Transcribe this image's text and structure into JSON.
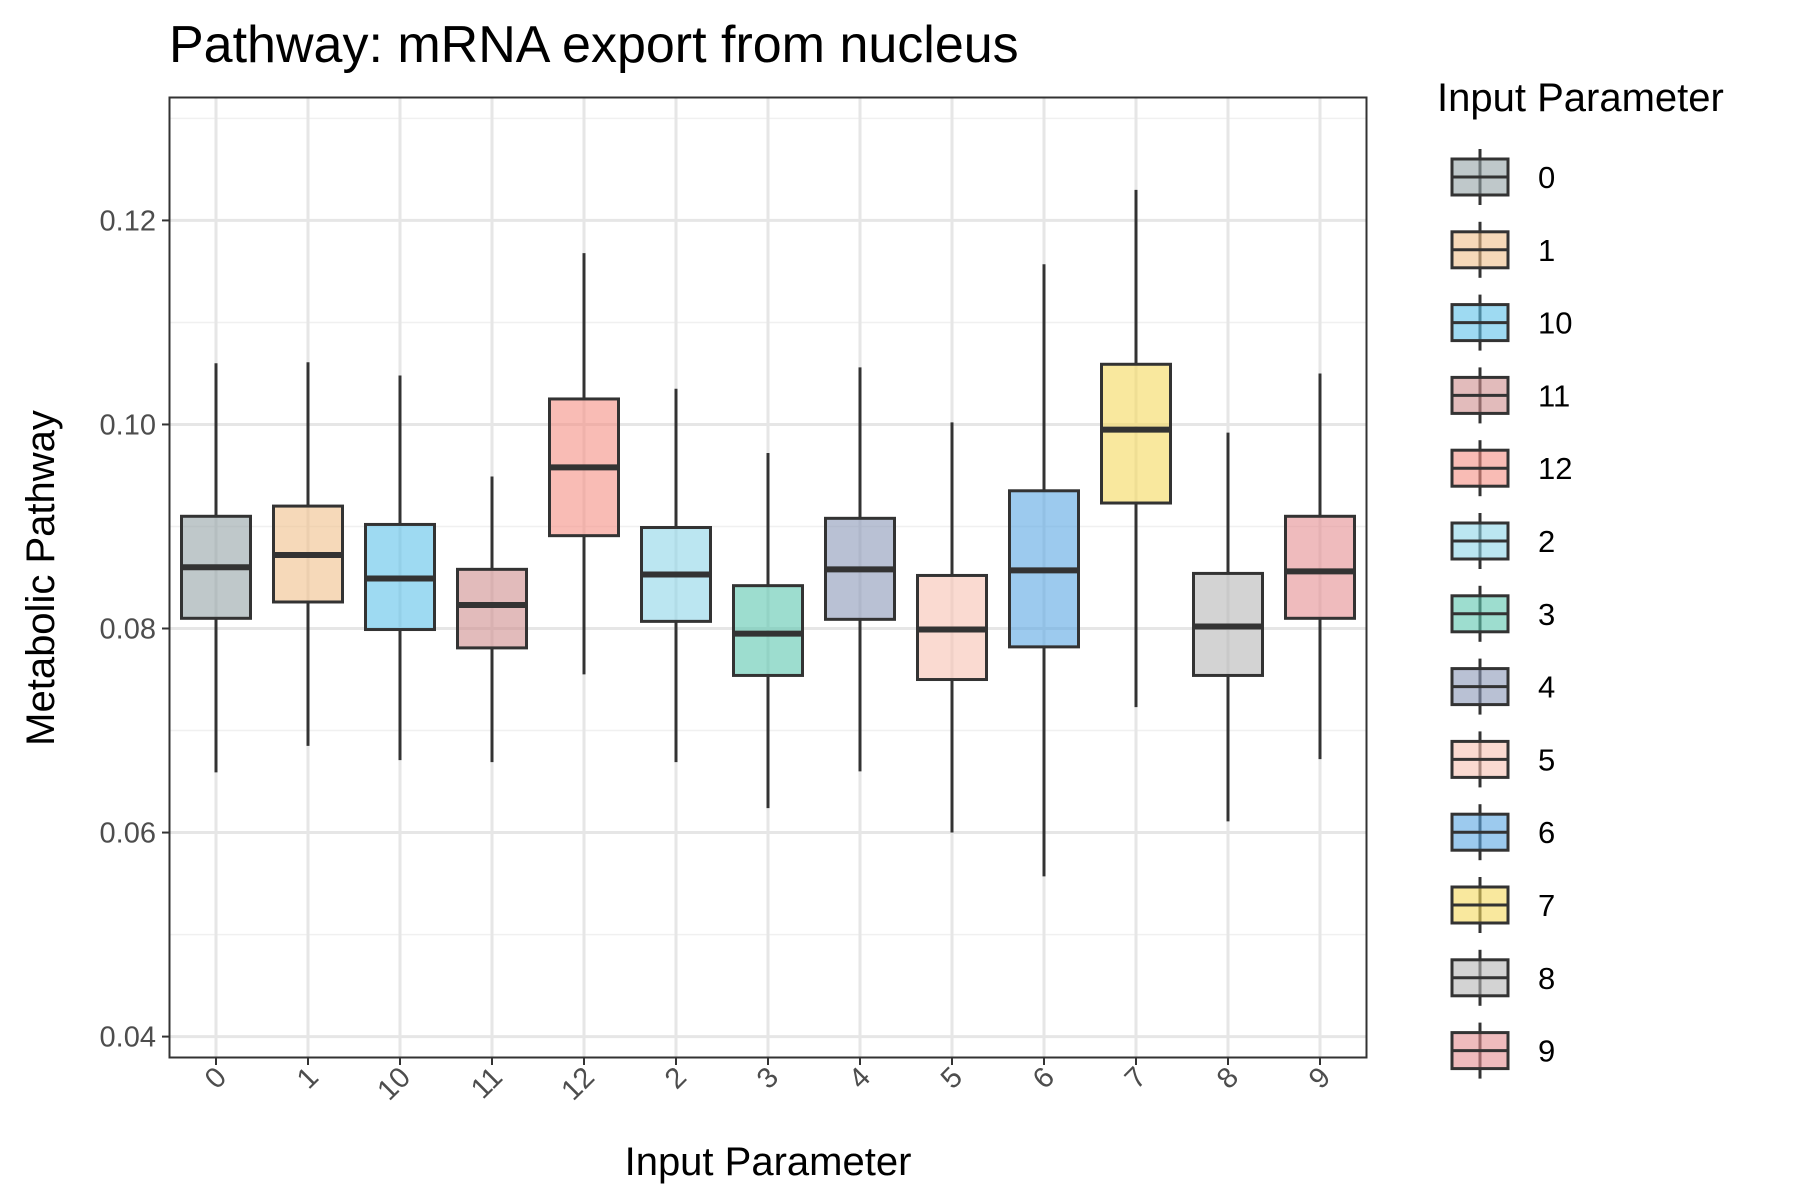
{
  "chart_data": {
    "type": "boxplot",
    "title": "Pathway: mRNA export from nucleus",
    "xlabel": "Input Parameter",
    "ylabel": "Metabolic Pathway",
    "ylim": [
      0.038,
      0.132
    ],
    "yticks": [
      0.04,
      0.06,
      0.08,
      0.1,
      0.12
    ],
    "ytick_labels": [
      "0.04",
      "0.06",
      "0.08",
      "0.10",
      "0.12"
    ],
    "grid": true,
    "legend": {
      "title": "Input Parameter",
      "position": "right"
    },
    "categories": [
      "0",
      "1",
      "10",
      "11",
      "12",
      "2",
      "3",
      "4",
      "5",
      "6",
      "7",
      "8",
      "9"
    ],
    "boxes": [
      {
        "label": "0",
        "min": 0.0659,
        "q1": 0.081,
        "median": 0.086,
        "q3": 0.091,
        "max": 0.106,
        "color": "#95A3A6"
      },
      {
        "label": "1",
        "min": 0.0685,
        "q1": 0.0826,
        "median": 0.0872,
        "q3": 0.092,
        "max": 0.1061,
        "color": "#F0C08A"
      },
      {
        "label": "10",
        "min": 0.0671,
        "q1": 0.0799,
        "median": 0.0849,
        "q3": 0.0902,
        "max": 0.1048,
        "color": "#5DC2EA"
      },
      {
        "label": "11",
        "min": 0.0669,
        "q1": 0.0781,
        "median": 0.0823,
        "q3": 0.0858,
        "max": 0.0949,
        "color": "#CE8E8E"
      },
      {
        "label": "12",
        "min": 0.0755,
        "q1": 0.0891,
        "median": 0.0958,
        "q3": 0.1025,
        "max": 0.1168,
        "color": "#F58F84"
      },
      {
        "label": "2",
        "min": 0.0669,
        "q1": 0.0807,
        "median": 0.0853,
        "q3": 0.0899,
        "max": 0.1035,
        "color": "#8DD5E7"
      },
      {
        "label": "3",
        "min": 0.0624,
        "q1": 0.0754,
        "median": 0.0795,
        "q3": 0.0842,
        "max": 0.0972,
        "color": "#5BC7AF"
      },
      {
        "label": "4",
        "min": 0.066,
        "q1": 0.0809,
        "median": 0.0858,
        "q3": 0.0908,
        "max": 0.1056,
        "color": "#8A97B8"
      },
      {
        "label": "5",
        "min": 0.06,
        "q1": 0.075,
        "median": 0.0799,
        "q3": 0.0852,
        "max": 0.1002,
        "color": "#F6C2B3"
      },
      {
        "label": "6",
        "min": 0.0557,
        "q1": 0.0782,
        "median": 0.0857,
        "q3": 0.0935,
        "max": 0.1157,
        "color": "#5AA6E3"
      },
      {
        "label": "7",
        "min": 0.0723,
        "q1": 0.0923,
        "median": 0.0995,
        "q3": 0.1059,
        "max": 0.123,
        "color": "#F5D85E"
      },
      {
        "label": "8",
        "min": 0.0611,
        "q1": 0.0754,
        "median": 0.0802,
        "q3": 0.0854,
        "max": 0.0992,
        "color": "#B5B5B5"
      },
      {
        "label": "9",
        "min": 0.0672,
        "q1": 0.081,
        "median": 0.0856,
        "q3": 0.091,
        "max": 0.105,
        "color": "#E58E91"
      }
    ]
  }
}
